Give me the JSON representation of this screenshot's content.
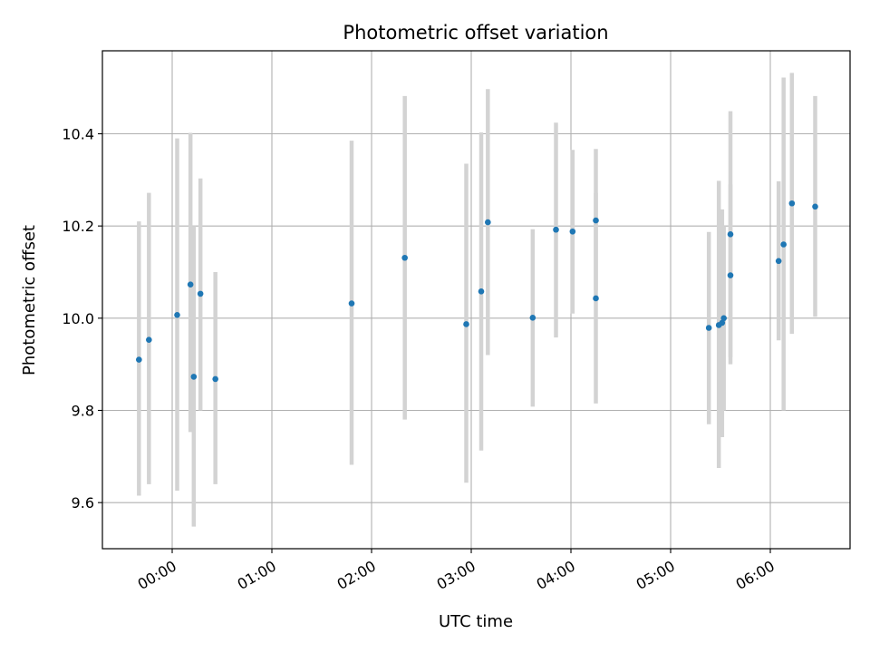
{
  "chart_data": {
    "type": "scatter",
    "title": "Photometric offset variation",
    "xlabel": "UTC time",
    "ylabel": "Photometric offset",
    "x_tick_labels": [
      "00:00",
      "01:00",
      "02:00",
      "03:00",
      "04:00",
      "05:00",
      "06:00"
    ],
    "x_ticks_hours": [
      0,
      1,
      2,
      3,
      4,
      5,
      6
    ],
    "xlim_hours": [
      -0.7,
      6.8
    ],
    "y_ticks": [
      9.6,
      9.8,
      10.0,
      10.2,
      10.4
    ],
    "y_tick_labels": [
      "9.6",
      "9.8",
      "10.0",
      "10.2",
      "10.4"
    ],
    "ylim": [
      9.5,
      10.58
    ],
    "grid": true,
    "marker_color": "#1f77b4",
    "errorbar_color": "#d3d3d3",
    "points": [
      {
        "t": "23:40",
        "y": 9.91,
        "ylo": 9.615,
        "yhi": 10.21
      },
      {
        "t": "23:46",
        "y": 9.953,
        "ylo": 9.64,
        "yhi": 10.272
      },
      {
        "t": "00:03",
        "y": 10.007,
        "ylo": 9.626,
        "yhi": 10.39
      },
      {
        "t": "00:11",
        "y": 10.073,
        "ylo": 9.753,
        "yhi": 10.402
      },
      {
        "t": "00:13",
        "y": 9.873,
        "ylo": 9.548,
        "yhi": 10.2
      },
      {
        "t": "00:17",
        "y": 10.053,
        "ylo": 9.8,
        "yhi": 10.303
      },
      {
        "t": "00:26",
        "y": 9.868,
        "ylo": 9.64,
        "yhi": 10.1
      },
      {
        "t": "01:48",
        "y": 10.032,
        "ylo": 9.682,
        "yhi": 10.385
      },
      {
        "t": "02:20",
        "y": 10.131,
        "ylo": 9.78,
        "yhi": 10.482
      },
      {
        "t": "02:57",
        "y": 9.987,
        "ylo": 9.643,
        "yhi": 10.335
      },
      {
        "t": "03:06",
        "y": 10.058,
        "ylo": 9.713,
        "yhi": 10.403
      },
      {
        "t": "03:10",
        "y": 10.208,
        "ylo": 9.92,
        "yhi": 10.497
      },
      {
        "t": "03:37",
        "y": 10.001,
        "ylo": 9.808,
        "yhi": 10.193
      },
      {
        "t": "03:51",
        "y": 10.192,
        "ylo": 9.958,
        "yhi": 10.424
      },
      {
        "t": "04:01",
        "y": 10.188,
        "ylo": 10.01,
        "yhi": 10.365
      },
      {
        "t": "04:15",
        "y": 10.043,
        "ylo": 9.815,
        "yhi": 10.272
      },
      {
        "t": "04:15",
        "y": 10.212,
        "ylo": 10.06,
        "yhi": 10.367
      },
      {
        "t": "05:23",
        "y": 9.979,
        "ylo": 9.77,
        "yhi": 10.187
      },
      {
        "t": "05:29",
        "y": 9.985,
        "ylo": 9.675,
        "yhi": 10.298
      },
      {
        "t": "05:31",
        "y": 9.99,
        "ylo": 9.742,
        "yhi": 10.236
      },
      {
        "t": "05:32",
        "y": 10.0,
        "ylo": 9.8,
        "yhi": 10.2
      },
      {
        "t": "05:36",
        "y": 10.182,
        "ylo": 9.915,
        "yhi": 10.449
      },
      {
        "t": "05:36",
        "y": 10.093,
        "ylo": 9.9,
        "yhi": 10.29
      },
      {
        "t": "06:05",
        "y": 10.124,
        "ylo": 9.952,
        "yhi": 10.297
      },
      {
        "t": "06:08",
        "y": 10.16,
        "ylo": 9.8,
        "yhi": 10.522
      },
      {
        "t": "06:13",
        "y": 10.249,
        "ylo": 9.966,
        "yhi": 10.532
      },
      {
        "t": "06:27",
        "y": 10.242,
        "ylo": 10.003,
        "yhi": 10.482
      }
    ]
  }
}
